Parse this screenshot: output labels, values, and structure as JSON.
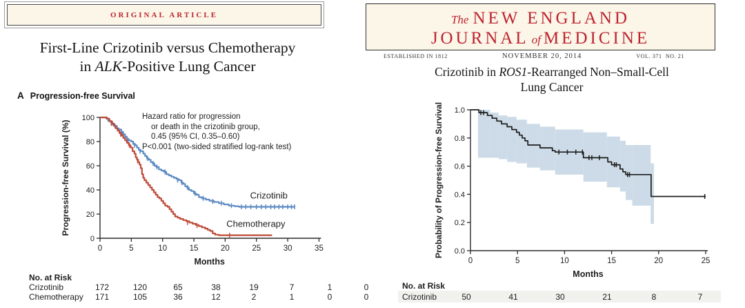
{
  "colors": {
    "nejm_red": "#bd2230",
    "cream": "#fbf6e7",
    "crizotinib_blue": "#5d8bc2",
    "chemotherapy_red": "#bf4a37",
    "km_black": "#1c1c1c",
    "confidence_band": "#ccdbe7",
    "risk_stripe": "#f1f1ee"
  },
  "left_panel": {
    "banner": "ORIGINAL ARTICLE",
    "title_line1": "First-Line Crizotinib versus Chemotherapy",
    "title_line2_pre": "in ",
    "title_line2_italic": "ALK",
    "title_line2_post": "-Positive Lung Cancer",
    "panel_letter": "A",
    "panel_title": "Progression-free Survival",
    "annotation_lines": [
      "Hazard ratio for progression",
      "or death in the crizotinib group,",
      "0.45 (95% CI, 0.35–0.60)",
      "P<0.001 (two-sided stratified log-rank test)"
    ]
  },
  "right_panel": {
    "masthead": {
      "the": "The",
      "name_top": "NEW ENGLAND",
      "name_bottom_pre": "JOURNAL",
      "name_bottom_of": "of",
      "name_bottom_post": "MEDICINE",
      "established": "ESTABLISHED IN 1812",
      "issue_date": "NOVEMBER 20, 2014",
      "volume": "VOL. 371",
      "number": "NO. 21"
    },
    "title_line1_pre": "Crizotinib in ",
    "title_line1_italic": "ROS1",
    "title_line1_post": "-Rearranged Non–Small-Cell",
    "title_line2": "Lung Cancer"
  },
  "chart_data": [
    {
      "type": "line",
      "subtype": "kaplan-meier",
      "title": "A  Progression-free Survival",
      "xlabel": "Months",
      "ylabel": "Progression-free Survival (%)",
      "xlim": [
        0,
        35
      ],
      "ylim": [
        0,
        100
      ],
      "xticks": [
        0,
        5,
        10,
        15,
        20,
        25,
        30,
        35
      ],
      "xtick_labels": [
        "0",
        "5",
        "10",
        "15",
        "20",
        "25",
        "30",
        "35"
      ],
      "yticks": [
        0,
        20,
        40,
        60,
        80,
        100
      ],
      "ytick_labels": [
        "0",
        "20",
        "40",
        "60",
        "80",
        "100"
      ],
      "grid": false,
      "legend_position": "inline-curve-labels",
      "annotation": "Hazard ratio for progression or death in the crizotinib group, 0.45 (95% CI, 0.35–0.60); P<0.001 (two-sided stratified log-rank test)",
      "series": [
        {
          "name": "Crizotinib",
          "color": "#5d8bc2",
          "label_pos": [
            24.0,
            33
          ],
          "points": [
            [
              0,
              100
            ],
            [
              1.0,
              99
            ],
            [
              1.3,
              97
            ],
            [
              1.7,
              96
            ],
            [
              2.0,
              94
            ],
            [
              2.3,
              93
            ],
            [
              2.7,
              91
            ],
            [
              3.0,
              90
            ],
            [
              3.4,
              88
            ],
            [
              3.7,
              86
            ],
            [
              4.0,
              84
            ],
            [
              4.3,
              82
            ],
            [
              4.6,
              81
            ],
            [
              5.0,
              80
            ],
            [
              5.3,
              78
            ],
            [
              5.6,
              77
            ],
            [
              5.9,
              75
            ],
            [
              6.2,
              73
            ],
            [
              6.5,
              72
            ],
            [
              6.9,
              70
            ],
            [
              7.2,
              68
            ],
            [
              7.5,
              66
            ],
            [
              7.8,
              65
            ],
            [
              8.1,
              63
            ],
            [
              8.4,
              62
            ],
            [
              8.7,
              60
            ],
            [
              9.0,
              59
            ],
            [
              9.4,
              57
            ],
            [
              9.8,
              56
            ],
            [
              10.2,
              55
            ],
            [
              10.6,
              53
            ],
            [
              11.0,
              52
            ],
            [
              11.4,
              51
            ],
            [
              11.8,
              50
            ],
            [
              12.2,
              49
            ],
            [
              12.6,
              48
            ],
            [
              13.0,
              46
            ],
            [
              13.3,
              45
            ],
            [
              13.6,
              43
            ],
            [
              13.9,
              42
            ],
            [
              14.2,
              40
            ],
            [
              14.6,
              39
            ],
            [
              15.0,
              37
            ],
            [
              15.4,
              36
            ],
            [
              15.8,
              34
            ],
            [
              16.3,
              33
            ],
            [
              16.9,
              32
            ],
            [
              17.5,
              31
            ],
            [
              18.2,
              30
            ],
            [
              19.0,
              29
            ],
            [
              19.8,
              28
            ],
            [
              20.6,
              27
            ],
            [
              21.5,
              26.5
            ],
            [
              22.2,
              26
            ],
            [
              31.2,
              26
            ]
          ],
          "censors": [
            [
              2.4,
              93
            ],
            [
              3.5,
              87
            ],
            [
              4.5,
              81
            ],
            [
              5.5,
              77
            ],
            [
              6.4,
              72
            ],
            [
              7.6,
              66
            ],
            [
              8.5,
              62
            ],
            [
              9.1,
              59
            ],
            [
              10.4,
              55
            ],
            [
              12.4,
              48
            ],
            [
              13.1,
              46
            ],
            [
              14.0,
              42
            ],
            [
              15.2,
              37
            ],
            [
              16.5,
              33
            ],
            [
              18.0,
              30.5
            ],
            [
              19.4,
              29
            ],
            [
              21.0,
              27
            ],
            [
              22.6,
              26
            ],
            [
              23.3,
              26
            ],
            [
              24.1,
              26
            ],
            [
              25.0,
              26
            ],
            [
              25.8,
              26
            ],
            [
              26.5,
              26
            ],
            [
              27.3,
              26
            ],
            [
              27.9,
              26
            ],
            [
              28.6,
              26
            ],
            [
              29.2,
              26
            ],
            [
              30.0,
              26
            ],
            [
              30.6,
              26
            ],
            [
              31.1,
              26
            ]
          ]
        },
        {
          "name": "Chemotherapy",
          "color": "#bf4a37",
          "label_pos": [
            20.2,
            9.5
          ],
          "points": [
            [
              0,
              100
            ],
            [
              1.1,
              99
            ],
            [
              1.5,
              97
            ],
            [
              1.9,
              95
            ],
            [
              2.2,
              93
            ],
            [
              2.5,
              91
            ],
            [
              2.8,
              89
            ],
            [
              3.1,
              87
            ],
            [
              3.4,
              85
            ],
            [
              3.7,
              83
            ],
            [
              4.0,
              81
            ],
            [
              4.3,
              79
            ],
            [
              4.6,
              77
            ],
            [
              4.9,
              75
            ],
            [
              5.2,
              72
            ],
            [
              5.5,
              70
            ],
            [
              5.7,
              67
            ],
            [
              5.9,
              65
            ],
            [
              6.1,
              63
            ],
            [
              6.3,
              61
            ],
            [
              6.5,
              58
            ],
            [
              6.7,
              53
            ],
            [
              6.9,
              50
            ],
            [
              7.1,
              48
            ],
            [
              7.4,
              46
            ],
            [
              7.7,
              44
            ],
            [
              8.0,
              42
            ],
            [
              8.3,
              40
            ],
            [
              8.6,
              38
            ],
            [
              8.9,
              36
            ],
            [
              9.2,
              34
            ],
            [
              9.5,
              33
            ],
            [
              9.8,
              31
            ],
            [
              10.1,
              29
            ],
            [
              10.4,
              27
            ],
            [
              10.8,
              26
            ],
            [
              11.1,
              24
            ],
            [
              11.4,
              22
            ],
            [
              11.7,
              20
            ],
            [
              12.0,
              18
            ],
            [
              12.4,
              17
            ],
            [
              12.8,
              16
            ],
            [
              13.3,
              15
            ],
            [
              13.8,
              14
            ],
            [
              14.3,
              13
            ],
            [
              14.8,
              12
            ],
            [
              15.3,
              11
            ],
            [
              15.8,
              10
            ],
            [
              16.3,
              9
            ],
            [
              16.8,
              8
            ],
            [
              17.2,
              7
            ],
            [
              17.6,
              6
            ],
            [
              18.0,
              4
            ],
            [
              18.4,
              3
            ],
            [
              19.0,
              2.5
            ],
            [
              27.5,
              2.5
            ]
          ],
          "censors": [
            [
              1.8,
              95
            ],
            [
              3.3,
              86
            ],
            [
              4.7,
              77
            ],
            [
              6.0,
              64
            ],
            [
              14.0,
              13
            ],
            [
              15.5,
              10.5
            ],
            [
              20.7,
              2.5
            ]
          ]
        }
      ],
      "no_at_risk": {
        "label": "No. at Risk",
        "rows": [
          {
            "name": "Crizotinib",
            "counts": [
              172,
              120,
              65,
              38,
              19,
              7,
              1,
              0
            ]
          },
          {
            "name": "Chemotherapy",
            "counts": [
              171,
              105,
              36,
              12,
              2,
              1,
              0,
              0
            ]
          }
        ]
      }
    },
    {
      "type": "line",
      "subtype": "kaplan-meier",
      "title": "Crizotinib in ROS1-Rearranged Non–Small-Cell Lung Cancer",
      "xlabel": "Months",
      "ylabel": "Probability of Progression-free Survival",
      "xlim": [
        0,
        25
      ],
      "ylim": [
        0,
        1
      ],
      "xticks": [
        0,
        5,
        10,
        15,
        20,
        25
      ],
      "xtick_labels": [
        "0",
        "5",
        "10",
        "15",
        "20",
        "25"
      ],
      "yticks": [
        0,
        0.2,
        0.4,
        0.6,
        0.8,
        1.0
      ],
      "ytick_labels": [
        "0.0",
        "0.2",
        "0.4",
        "0.6",
        "0.8",
        "1.0"
      ],
      "grid": false,
      "confidence_band": {
        "color": "#ccdbe7",
        "steps": [
          [
            0.8,
            1.0,
            0.66
          ],
          [
            2.1,
            0.98,
            0.66
          ],
          [
            3.0,
            0.96,
            0.65
          ],
          [
            3.9,
            0.95,
            0.63
          ],
          [
            4.9,
            0.93,
            0.62
          ],
          [
            6.0,
            0.9,
            0.59
          ],
          [
            7.4,
            0.88,
            0.57
          ],
          [
            9.0,
            0.86,
            0.54
          ],
          [
            12.0,
            0.84,
            0.49
          ],
          [
            14.5,
            0.81,
            0.45
          ],
          [
            15.9,
            0.78,
            0.42
          ],
          [
            16.5,
            0.75,
            0.36
          ],
          [
            17.2,
            0.75,
            0.32
          ],
          [
            19.15,
            0.62,
            0.19
          ],
          [
            19.5,
            0.62,
            0.19
          ]
        ]
      },
      "series": [
        {
          "name": "Crizotinib",
          "color": "#1c1c1c",
          "points": [
            [
              0,
              1.0
            ],
            [
              0.9,
              0.98
            ],
            [
              1.8,
              0.96
            ],
            [
              2.3,
              0.94
            ],
            [
              2.8,
              0.92
            ],
            [
              3.3,
              0.9
            ],
            [
              3.9,
              0.88
            ],
            [
              4.4,
              0.86
            ],
            [
              4.9,
              0.84
            ],
            [
              5.2,
              0.82
            ],
            [
              5.5,
              0.8
            ],
            [
              5.8,
              0.78
            ],
            [
              6.1,
              0.75
            ],
            [
              7.4,
              0.73
            ],
            [
              8.7,
              0.71
            ],
            [
              9.0,
              0.7
            ],
            [
              12.0,
              0.66
            ],
            [
              14.6,
              0.63
            ],
            [
              15.0,
              0.61
            ],
            [
              15.9,
              0.58
            ],
            [
              16.2,
              0.56
            ],
            [
              16.5,
              0.54
            ],
            [
              19.2,
              0.385
            ],
            [
              25.0,
              0.385
            ]
          ],
          "censors": [
            [
              1.1,
              0.98
            ],
            [
              1.4,
              0.98
            ],
            [
              9.4,
              0.7
            ],
            [
              10.3,
              0.7
            ],
            [
              11.2,
              0.7
            ],
            [
              11.9,
              0.7
            ],
            [
              12.6,
              0.66
            ],
            [
              12.9,
              0.66
            ],
            [
              13.7,
              0.66
            ],
            [
              15.3,
              0.61
            ],
            [
              15.5,
              0.61
            ],
            [
              16.7,
              0.54
            ],
            [
              16.9,
              0.54
            ],
            [
              24.9,
              0.385
            ]
          ]
        }
      ],
      "no_at_risk": {
        "label": "No. at Risk",
        "rows": [
          {
            "name": "Crizotinib",
            "counts": [
              50,
              41,
              30,
              21,
              8,
              7
            ]
          }
        ]
      }
    }
  ]
}
